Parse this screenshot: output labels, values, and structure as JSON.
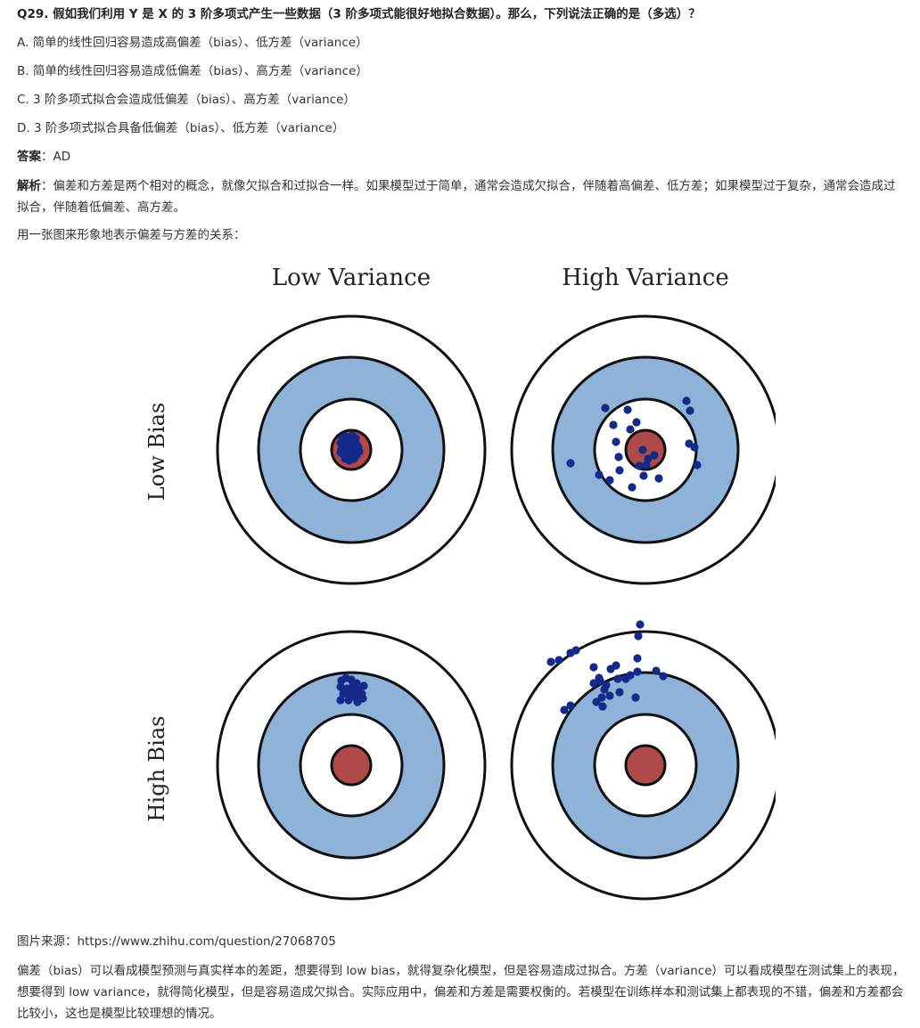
{
  "question": "Q29. 假如我们利用 Y 是 X 的 3 阶多项式产生一些数据（3 阶多项式能很好地拟合数据）。那么，下列说法正确的是（多选）？",
  "options": [
    "A. 简单的线性回归容易造成高偏差（bias）、低方差（variance）",
    "B. 简单的线性回归容易造成低偏差（bias）、高方差（variance）",
    "C. 3 阶多项式拟合会造成低偏差（bias）、高方差（variance）",
    "D. 3 阶多项式拟合具备低偏差（bias）、低方差（variance）"
  ],
  "answer": {
    "label": "答案",
    "sep": "：",
    "value": "AD"
  },
  "analysis": {
    "label": "解析",
    "sep": "：",
    "text": "偏差和方差是两个相对的概念，就像欠拟合和过拟合一样。如果模型过于简单，通常会造成欠拟合，伴随着高偏差、低方差；如果模型过于复杂，通常会造成过拟合，伴随着低偏差、高方差。"
  },
  "figure_intro": "用一张图来形象地表示偏差与方差的关系：",
  "figure": {
    "col_titles": [
      "Low Variance",
      "High Variance"
    ],
    "row_titles": [
      "Low Bias",
      "High Bias"
    ],
    "colors": {
      "outer_ring": "#ffffff",
      "middle_ring": "#8fb3d8",
      "inner_ring": "#ffffff",
      "bullseye": "#b04a4a",
      "dots": "#142a8a"
    }
  },
  "source": "图片来源：https://www.zhihu.com/question/27068705",
  "conclusion": "偏差（bias）可以看成模型预测与真实样本的差距，想要得到 low bias，就得复杂化模型，但是容易造成过拟合。方差（variance）可以看成模型在测试集上的表现，想要得到 low variance，就得简化模型，但是容易造成欠拟合。实际应用中，偏差和方差是需要权衡的。若模型在训练样本和测试集上都表现的不错，偏差和方差都会比较小，这也是模型比较理想的情况。"
}
